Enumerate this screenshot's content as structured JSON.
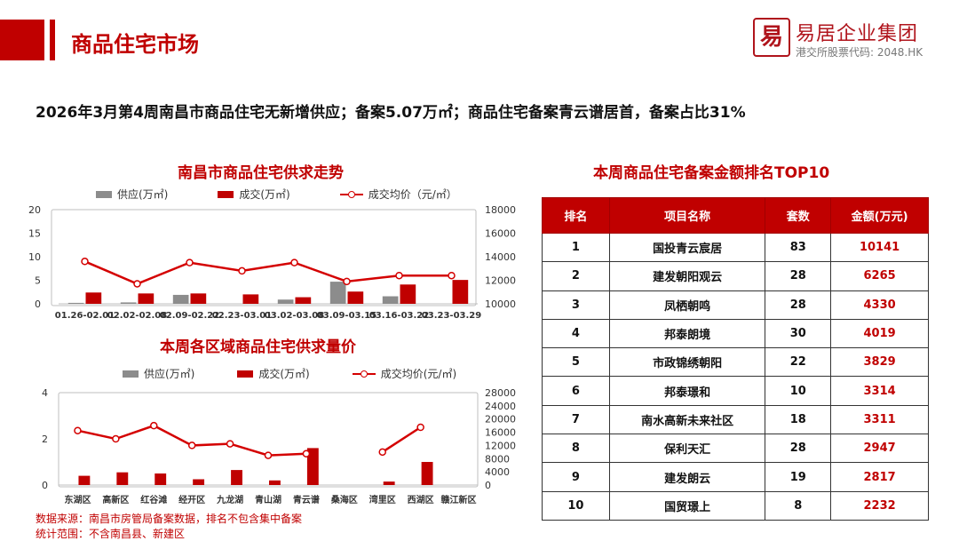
{
  "header": {
    "title": "商品住宅市场",
    "brand_name": "易居企业集团",
    "brand_sub": "港交所股票代码: 2048.HK",
    "logo_char": "易"
  },
  "headline": "2026年3月第4周南昌市商品住宅无新增供应；备案5.07万㎡；商品住宅备案青云谱居首，备案占比31%",
  "colors": {
    "accent": "#c00000",
    "supply": "#8c8c8c",
    "deal": "#c00000",
    "price_line": "#d40000"
  },
  "chart_data": [
    {
      "type": "bar",
      "title": "南昌市商品住宅供求走势",
      "categories": [
        "01.26-02.01",
        "02.02-02.08",
        "02.09-02.22",
        "02.23-03.01",
        "03.02-03.08",
        "03.09-03.15",
        "03.16-03.22",
        "03.23-03.29"
      ],
      "series": [
        {
          "name": "供应(万㎡)",
          "kind": "bar",
          "axis": "left",
          "values": [
            0.2,
            0.3,
            1.9,
            0,
            0.9,
            4.7,
            1.6,
            0
          ]
        },
        {
          "name": "成交(万㎡)",
          "kind": "bar",
          "axis": "left",
          "values": [
            2.4,
            2.2,
            2.2,
            2.0,
            1.4,
            2.6,
            4.1,
            5.07
          ]
        },
        {
          "name": "成交均价（元/㎡）",
          "kind": "line",
          "axis": "right",
          "values": [
            13600,
            11700,
            13500,
            12800,
            13500,
            11900,
            12400,
            12400
          ]
        }
      ],
      "left_axis": {
        "ylim": [
          0,
          20
        ],
        "ticks": [
          "0",
          "5",
          "10",
          "15",
          "20"
        ]
      },
      "right_axis": {
        "ylim": [
          10000,
          18000
        ],
        "ticks": [
          "10000",
          "12000",
          "14000",
          "16000",
          "18000"
        ]
      },
      "legend_position": "top"
    },
    {
      "type": "bar",
      "title": "本周各区域商品住宅供求量价",
      "categories": [
        "东湖区",
        "高新区",
        "红谷滩",
        "经开区",
        "九龙湖",
        "青山湖",
        "青云谱",
        "桑海区",
        "湾里区",
        "西湖区",
        "赣江新区"
      ],
      "series": [
        {
          "name": "供应(万㎡)",
          "kind": "bar",
          "axis": "left",
          "values": [
            0,
            0,
            0,
            0,
            0,
            0,
            0,
            0,
            0,
            0,
            0
          ]
        },
        {
          "name": "成交(万㎡)",
          "kind": "bar",
          "axis": "left",
          "values": [
            0.4,
            0.55,
            0.5,
            0.25,
            0.65,
            0.2,
            1.6,
            0,
            0.15,
            1.0,
            0
          ]
        },
        {
          "name": "成交均价(元/㎡)",
          "kind": "line",
          "axis": "right",
          "values": [
            16500,
            14000,
            18000,
            12000,
            12500,
            9000,
            9500,
            null,
            10000,
            17500,
            null
          ]
        }
      ],
      "left_axis": {
        "ylim": [
          0,
          4
        ],
        "ticks": [
          "0",
          "2",
          "4"
        ]
      },
      "right_axis": {
        "ylim": [
          0,
          28000
        ],
        "ticks": [
          "0",
          "4000",
          "8000",
          "12000",
          "16000",
          "20000",
          "24000",
          "28000"
        ]
      },
      "legend_position": "top"
    }
  ],
  "table": {
    "title": "本周商品住宅备案金额排名TOP10",
    "headers": [
      "排名",
      "项目名称",
      "套数",
      "金额(万元)"
    ],
    "rows": [
      [
        "1",
        "国投青云宸居",
        "83",
        "10141"
      ],
      [
        "2",
        "建发朝阳观云",
        "28",
        "6265"
      ],
      [
        "3",
        "凤栖朝鸣",
        "28",
        "4330"
      ],
      [
        "4",
        "邦泰朗境",
        "30",
        "4019"
      ],
      [
        "5",
        "市政锦绣朝阳",
        "22",
        "3829"
      ],
      [
        "6",
        "邦泰璟和",
        "10",
        "3314"
      ],
      [
        "7",
        "南水高新未来社区",
        "18",
        "3311"
      ],
      [
        "8",
        "保利天汇",
        "28",
        "2947"
      ],
      [
        "9",
        "建发朗云",
        "19",
        "2817"
      ],
      [
        "10",
        "国贸璟上",
        "8",
        "2232"
      ]
    ]
  },
  "footer": {
    "source": "数据来源：南昌市房管局备案数据，排名不包含集中备案",
    "scope": "统计范围：不含南昌县、新建区"
  }
}
